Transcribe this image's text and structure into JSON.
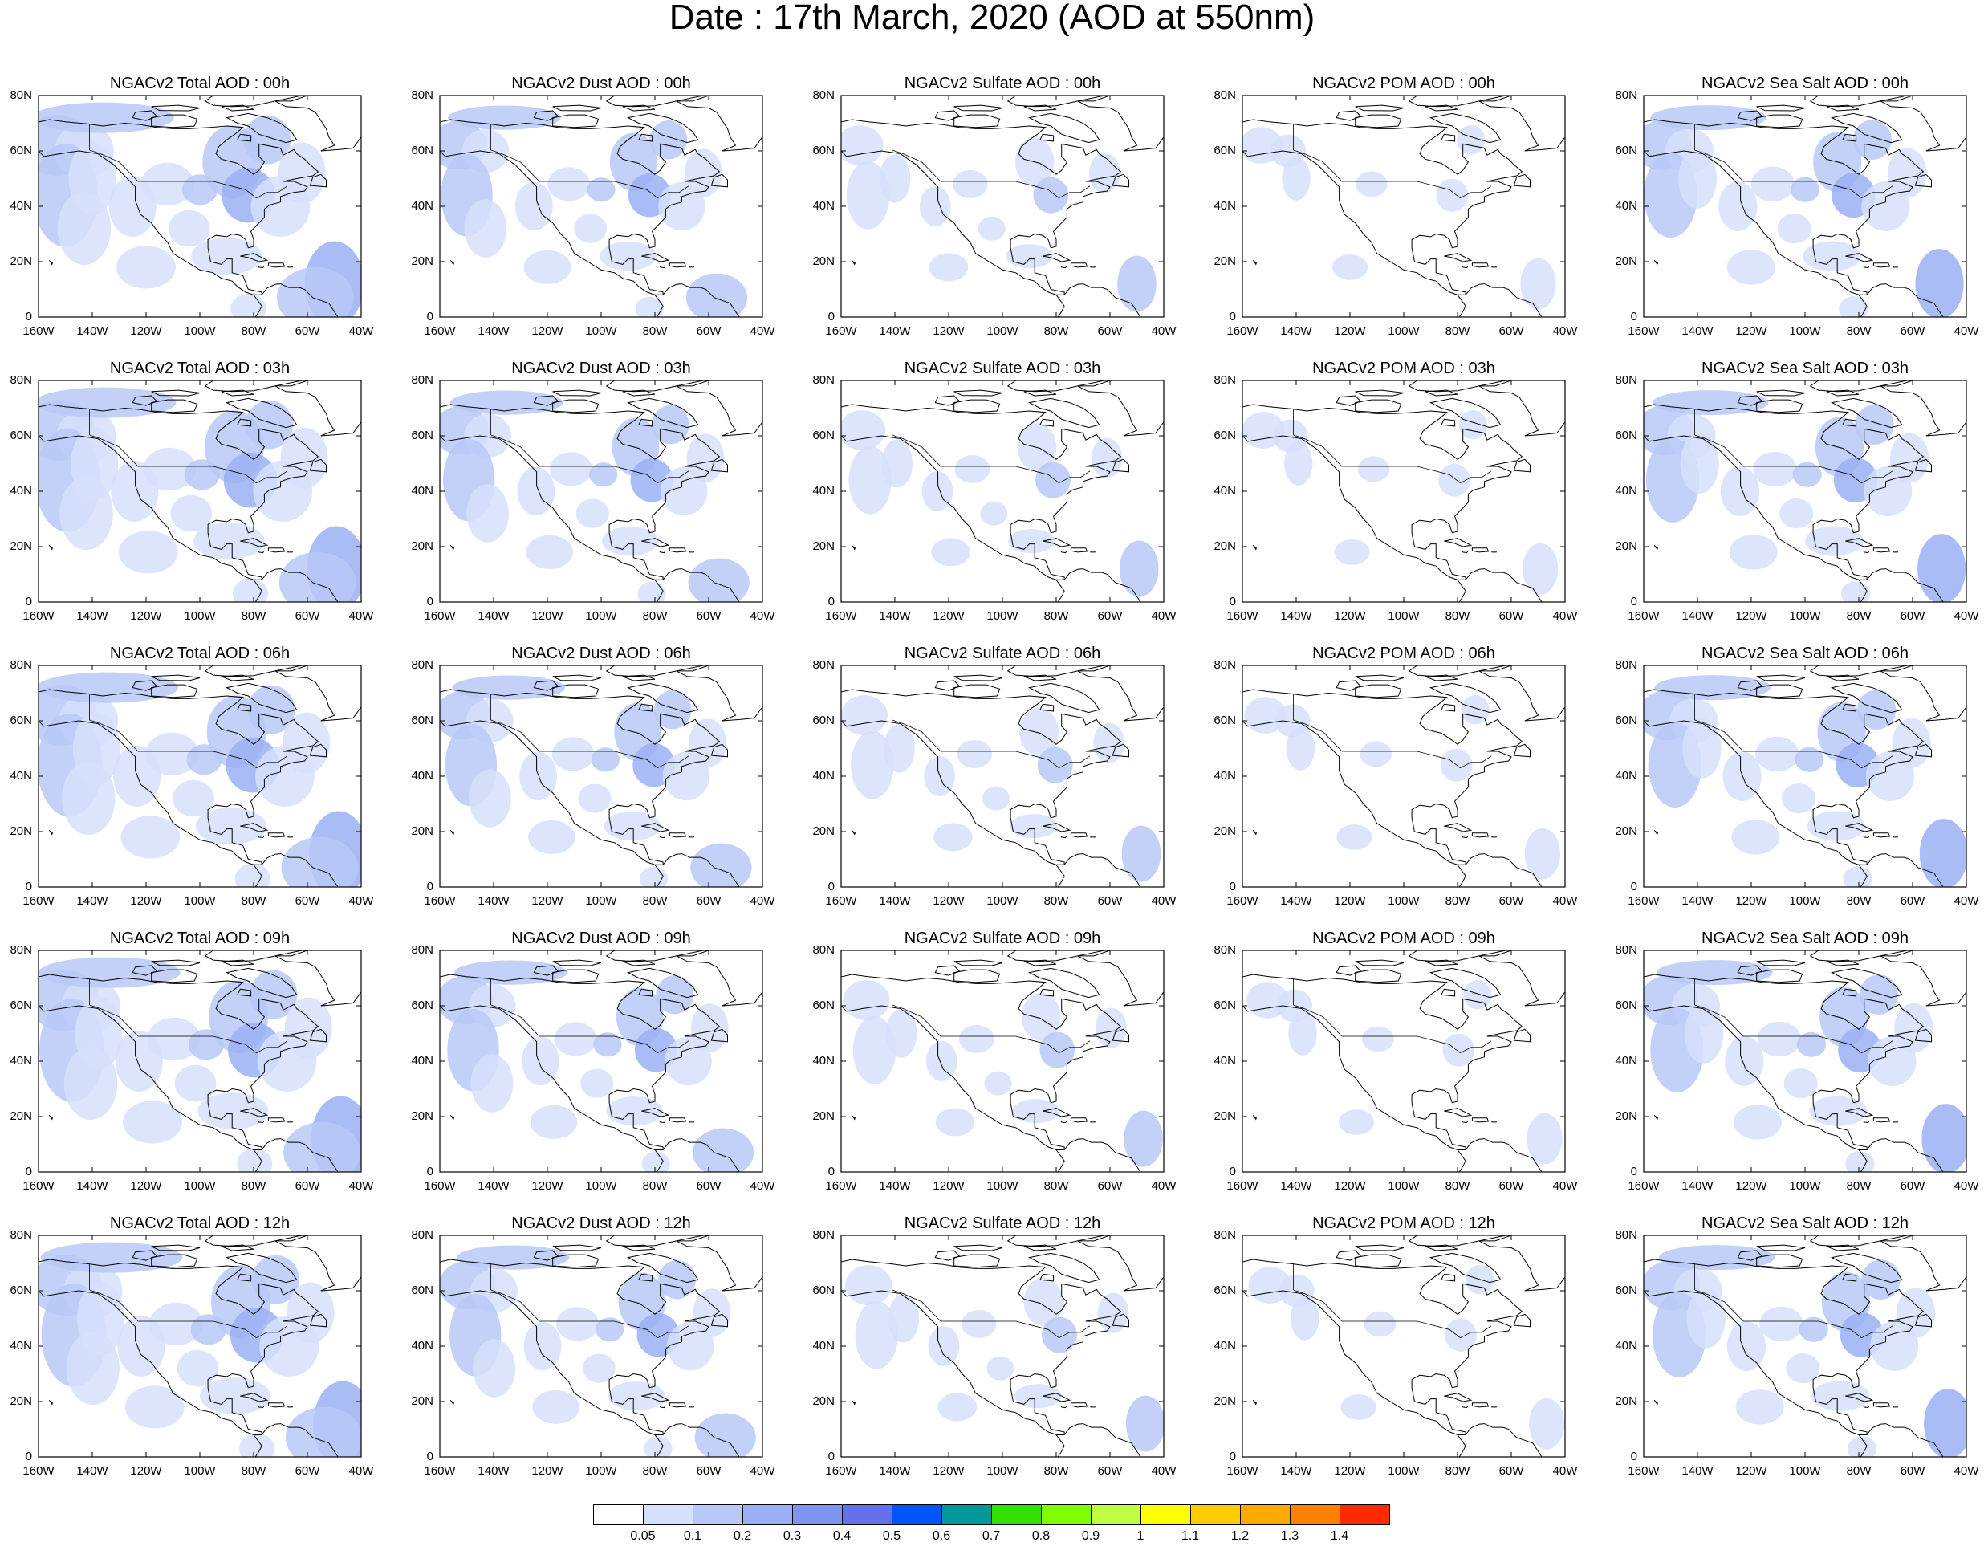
{
  "title": "Date : 17th March, 2020 (AOD at 550nm)",
  "lat_labels": [
    "80N",
    "60N",
    "40N",
    "20N",
    "0"
  ],
  "lon_labels": [
    "160W",
    "140W",
    "120W",
    "100W",
    "80W",
    "60W",
    "40W"
  ],
  "species": [
    {
      "key": "total",
      "intensity": 1.0
    },
    {
      "key": "dust",
      "intensity": 0.55
    },
    {
      "key": "sulfate",
      "intensity": 0.25
    },
    {
      "key": "pom",
      "intensity": 0.12
    },
    {
      "key": "seasalt",
      "intensity": 0.6
    }
  ],
  "panels": [
    [
      "NGACv2 Total AOD : 00h",
      "NGACv2 Dust AOD : 00h",
      "NGACv2 Sulfate AOD : 00h",
      "NGACv2 POM AOD : 00h",
      "NGACv2 Sea Salt AOD : 00h"
    ],
    [
      "NGACv2 Total AOD : 03h",
      "NGACv2 Dust AOD : 03h",
      "NGACv2 Sulfate AOD : 03h",
      "NGACv2 POM AOD : 03h",
      "NGACv2 Sea Salt AOD : 03h"
    ],
    [
      "NGACv2 Total AOD : 06h",
      "NGACv2 Dust AOD : 06h",
      "NGACv2 Sulfate AOD : 06h",
      "NGACv2 POM AOD : 06h",
      "NGACv2 Sea Salt AOD : 06h"
    ],
    [
      "NGACv2 Total AOD : 09h",
      "NGACv2 Dust AOD : 09h",
      "NGACv2 Sulfate AOD : 09h",
      "NGACv2 POM AOD : 09h",
      "NGACv2 Sea Salt  AOD : 09h"
    ],
    [
      "NGACv2 Total AOD  : 12h",
      "NGACv2 Dust AOD : 12h",
      "NGACv2 Sulfate AOD : 12h",
      "NGACv2 POM  AOD : 12h",
      "NGACv2 Sea Salt  AOD : 12h"
    ]
  ],
  "colorbar": {
    "colors": [
      "#ffffff",
      "#d6e0fa",
      "#b9c9f7",
      "#9bb0f4",
      "#7f95f0",
      "#6471e8",
      "#0055ff",
      "#009999",
      "#33e000",
      "#7fff00",
      "#bfff3f",
      "#ffff00",
      "#ffcc00",
      "#ffaa00",
      "#ff7f00",
      "#ff2a00"
    ],
    "labels": [
      "0.05",
      "0.1",
      "0.2",
      "0.3",
      "0.4",
      "0.5",
      "0.6",
      "0.7",
      "0.8",
      "0.9",
      "1",
      "1.1",
      "1.2",
      "1.3",
      "1.4"
    ]
  }
}
